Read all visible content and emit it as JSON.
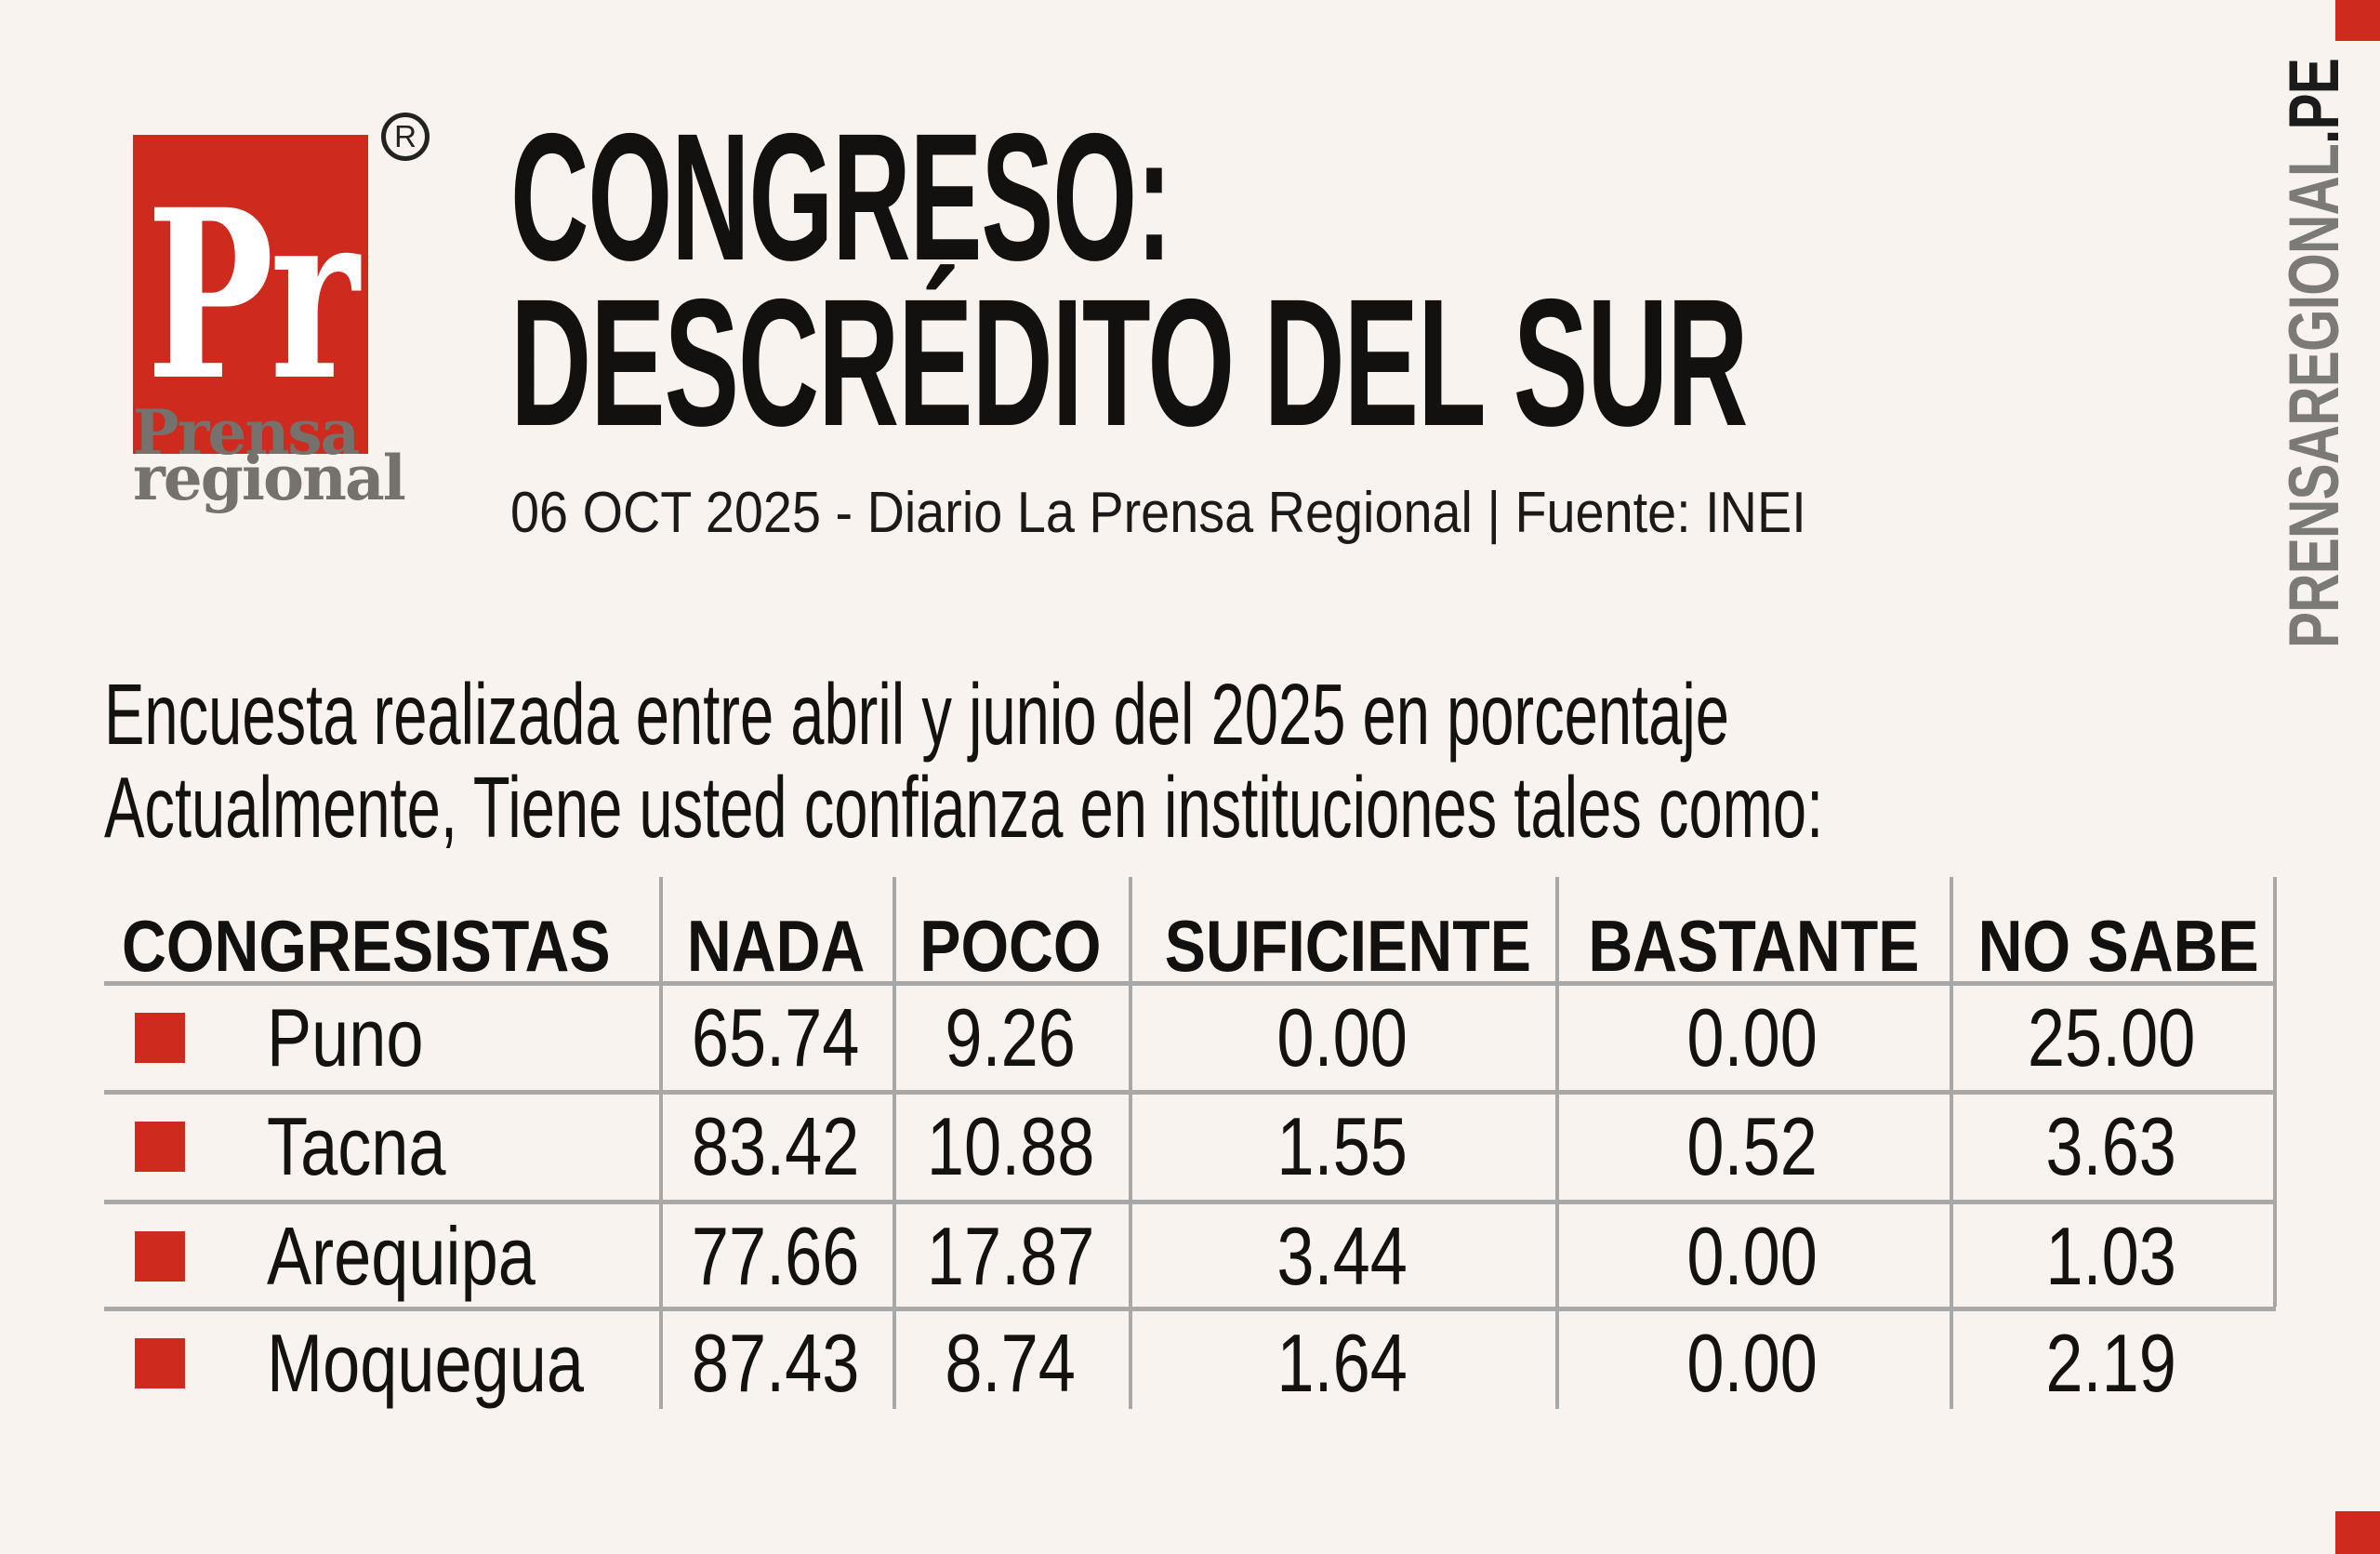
{
  "brand": {
    "monogram": "Pr",
    "registered_mark": "R",
    "name_line1": "Prensa",
    "name_line2": "regional",
    "site_vertical_gray": "PRENSAREGIONAL",
    "site_vertical_black": ".PE"
  },
  "header": {
    "title_line1": "CONGRESO:",
    "title_line2": "DESCRÉDITO DEL SUR",
    "subtitle": "06 OCT 2025 - Diario La Prensa Regional | Fuente: INEI"
  },
  "intro": {
    "line1": "Encuesta realizada entre abril y junio del 2025 en porcentaje",
    "line2": "Actualmente, Tiene usted confianza en instituciones tales como:"
  },
  "colors": {
    "background": "#f8f3ee",
    "accent_red": "#ce2a1e",
    "brand_gray": "#75716c",
    "site_gray": "#7c7a77",
    "table_line_gray": "#a8a8a8",
    "ink": "#14120f"
  },
  "chart_data": {
    "type": "table",
    "title": "CONGRESO: DESCRÉDITO DEL SUR",
    "subtitle": "06 OCT 2025 - Diario La Prensa Regional | Fuente: INEI",
    "question": "Actualmente, Tiene usted confianza en instituciones tales como:",
    "period": "abril y junio del 2025",
    "unit": "porcentaje",
    "columns": [
      "CONGRESISTAS",
      "NADA",
      "POCO",
      "SUFICIENTE",
      "BASTANTE",
      "NO SABE"
    ],
    "rows": [
      {
        "region": "Puno",
        "values": [
          "65.74",
          "9.26",
          "0.00",
          "0.00",
          "25.00"
        ]
      },
      {
        "region": "Tacna",
        "values": [
          "83.42",
          "10.88",
          "1.55",
          "0.52",
          "3.63"
        ]
      },
      {
        "region": "Arequipa",
        "values": [
          "77.66",
          "17.87",
          "3.44",
          "0.00",
          "1.03"
        ]
      },
      {
        "region": "Moquegua",
        "values": [
          "87.43",
          "8.74",
          "1.64",
          "0.00",
          "2.19"
        ]
      }
    ]
  }
}
